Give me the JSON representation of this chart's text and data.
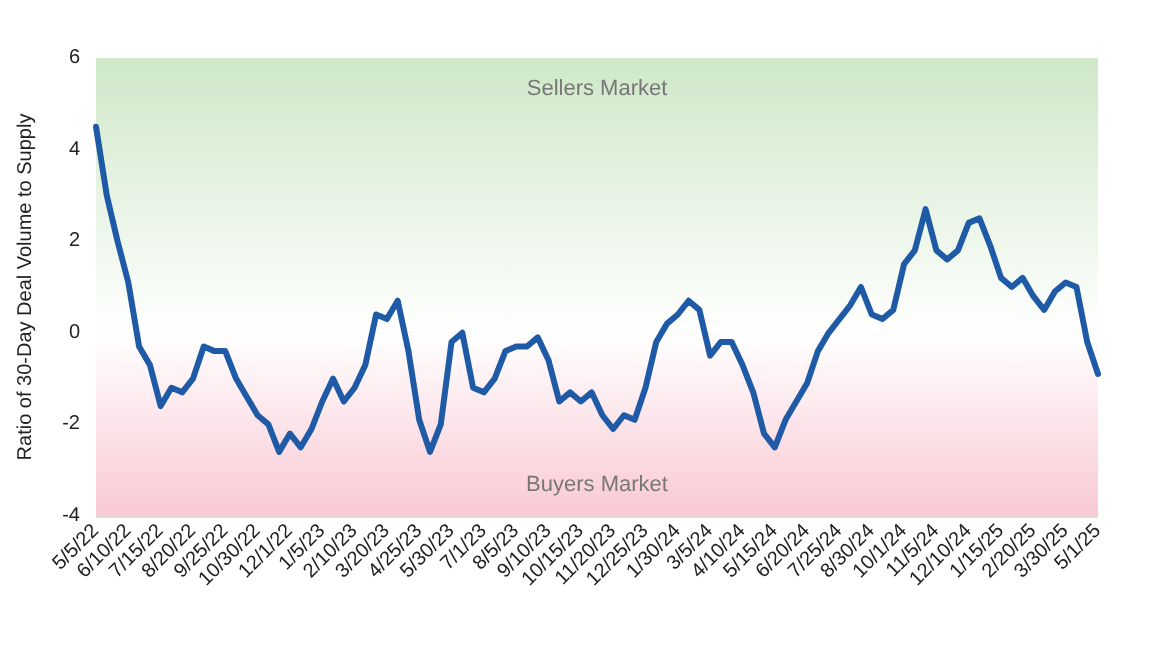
{
  "chart_data": {
    "type": "line",
    "ylabel": "Ratio of 30-Day Deal Volume to Supply",
    "categories": [
      "5/5/22",
      null,
      null,
      "6/10/22",
      null,
      null,
      "7/15/22",
      null,
      null,
      "8/20/22",
      null,
      null,
      "9/25/22",
      null,
      null,
      "10/30/22",
      null,
      null,
      "12/1/22",
      null,
      null,
      "1/5/23",
      null,
      null,
      "2/10/23",
      null,
      null,
      "3/20/23",
      null,
      null,
      "4/25/23",
      null,
      null,
      "5/30/23",
      null,
      null,
      "7/1/23",
      null,
      null,
      "8/5/23",
      null,
      null,
      "9/10/23",
      null,
      null,
      "10/15/23",
      null,
      null,
      "11/20/23",
      null,
      null,
      "12/25/23",
      null,
      null,
      "1/30/24",
      null,
      null,
      "3/5/24",
      null,
      null,
      "4/10/24",
      null,
      null,
      "5/15/24",
      null,
      null,
      "6/20/24",
      null,
      null,
      "7/25/24",
      null,
      null,
      "8/30/24",
      null,
      null,
      "10/1/24",
      null,
      null,
      "11/5/24",
      null,
      null,
      "12/10/24",
      null,
      null,
      "1/15/25",
      null,
      null,
      "2/20/25",
      null,
      null,
      "3/30/25",
      null,
      null,
      "5/1/25"
    ],
    "series": [
      {
        "color": "#1f5aa6",
        "values": [
          4.5,
          3.0,
          2.0,
          1.1,
          -0.3,
          -0.7,
          -1.6,
          -1.2,
          -1.3,
          -1.0,
          -0.3,
          -0.4,
          -0.4,
          -1.0,
          -1.4,
          -1.8,
          -2.0,
          -2.6,
          -2.2,
          -2.5,
          -2.1,
          -1.5,
          -1.0,
          -1.5,
          -1.2,
          -0.7,
          0.4,
          0.3,
          0.7,
          -0.4,
          -1.9,
          -2.6,
          -2.0,
          -0.2,
          0.0,
          -1.2,
          -1.3,
          -1.0,
          -0.4,
          -0.3,
          -0.3,
          -0.1,
          -0.6,
          -1.5,
          -1.3,
          -1.5,
          -1.3,
          -1.8,
          -2.1,
          -1.8,
          -1.9,
          -1.2,
          -0.2,
          0.2,
          0.4,
          0.7,
          0.5,
          -0.5,
          -0.2,
          -0.2,
          -0.7,
          -1.3,
          -2.2,
          -2.5,
          -1.9,
          -1.5,
          -1.1,
          -0.4,
          0.0,
          0.3,
          0.6,
          1.0,
          0.4,
          0.3,
          0.5,
          1.5,
          1.8,
          2.7,
          1.8,
          1.6,
          1.8,
          2.4,
          2.5,
          1.9,
          1.2,
          1.0,
          1.2,
          0.8,
          0.5,
          0.9,
          1.1,
          1.0,
          -0.2,
          -0.9
        ]
      }
    ],
    "ylim": [
      -4,
      6
    ],
    "yticks": [
      -4,
      -2,
      0,
      2,
      4,
      6
    ],
    "grid": "y",
    "marker": "none",
    "line_style": "solid",
    "bands": [
      {
        "axis": "y",
        "from": 0,
        "to": 6,
        "label": "Sellers Market",
        "color": "#cfe8c8"
      },
      {
        "axis": "y",
        "from": -4,
        "to": 0,
        "label": "Buyers Market",
        "color": "#f9c9d4"
      }
    ]
  }
}
